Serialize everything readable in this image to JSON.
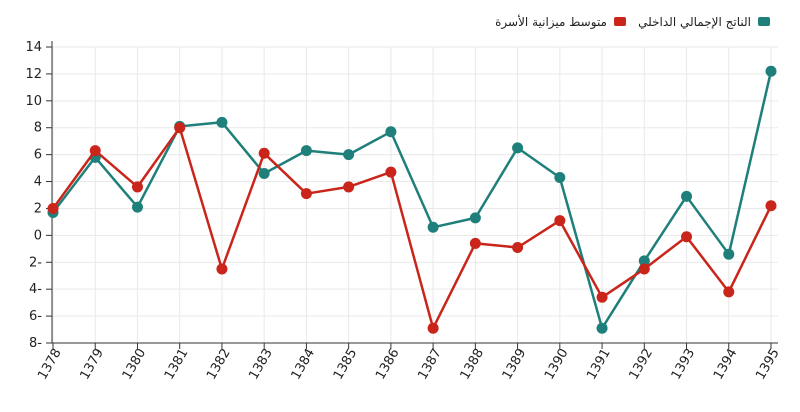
{
  "chart_data": {
    "type": "line",
    "categories": [
      "1378",
      "1379",
      "1380",
      "1381",
      "1382",
      "1383",
      "1384",
      "1385",
      "1386",
      "1387",
      "1388",
      "1389",
      "1390",
      "1391",
      "1392",
      "1393",
      "1394",
      "1395"
    ],
    "ylim": [
      -8,
      14
    ],
    "yticks": [
      14,
      12,
      10,
      8,
      6,
      4,
      2,
      0,
      -2,
      -4,
      -6,
      -8
    ],
    "ytick_labels": [
      "14",
      "12",
      "10",
      "8",
      "6",
      "4",
      "2",
      "0",
      "2-",
      "4-",
      "6-",
      "8-"
    ],
    "grid": true,
    "legend_position": "top-right",
    "series": [
      {
        "name": "الناتج الإجمالي الداخلي",
        "color": "#1f7f7a",
        "values": [
          1.7,
          5.8,
          2.1,
          8.1,
          8.4,
          4.6,
          6.3,
          6.0,
          7.7,
          0.6,
          1.3,
          6.5,
          4.3,
          -6.9,
          -1.9,
          2.9,
          -1.4,
          12.2
        ]
      },
      {
        "name": "متوسط ميزانية الأسرة",
        "color": "#c9251a",
        "values": [
          2.0,
          6.3,
          3.6,
          8.0,
          -2.5,
          6.1,
          3.1,
          3.6,
          4.7,
          -6.9,
          -0.6,
          -0.9,
          1.1,
          -4.6,
          -2.5,
          -0.1,
          -4.2,
          2.2
        ]
      }
    ]
  }
}
